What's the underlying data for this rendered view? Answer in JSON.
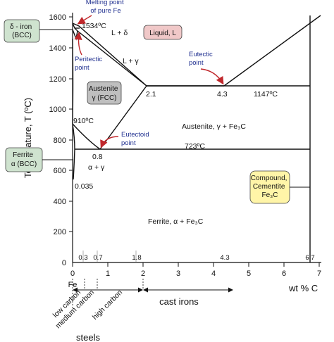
{
  "y_axis": {
    "title": "Temperature, T (ºC)",
    "ticks": [
      "1600",
      "1400",
      "1200",
      "1000",
      "800",
      "600",
      "400",
      "200",
      "0"
    ]
  },
  "x_axis": {
    "title": "wt % C",
    "ticks": [
      "0",
      "1",
      "2",
      "3",
      "4",
      "5",
      "6",
      "7"
    ],
    "fe_label": "Fe",
    "top_values": [
      "0.3",
      "0.7",
      "1.8",
      "4.3",
      "6.7"
    ]
  },
  "phases": {
    "delta_iron": "δ - iron\n(BCC)",
    "liquid": "Liquid, L",
    "austenite": "Austenite\nγ (FCC)",
    "ferrite": "Ferrite\nα (BCC)",
    "compound": "Compound,\nCementite\nFe₃C"
  },
  "labels": {
    "melting_point": "Melting point\nof pure Fe",
    "t1534": "1534ºC",
    "l_plus_delta": "L + δ",
    "l_plus_gamma": "L + γ",
    "peritectic": "Peritectic\npoint",
    "eutectic": "Eutectic\npoint",
    "eutectoid": "Eutectoid\npoint",
    "c_2_1": "2.1",
    "c_4_3": "4.3",
    "t1147": "1147ºC",
    "t910": "910ºC",
    "c_0_8": "0.8",
    "alpha_gamma": "α + γ",
    "t723": "723ºC",
    "c_0_035": "0.035",
    "austenite_fe3c": "Austenite, γ + Fe₃C",
    "ferrite_fe3c": "Ferrite, α + Fe₃C"
  },
  "bottom": {
    "low_carbon": "low carbon",
    "medium_carbon": "medium carbon",
    "high_carbon": "high carbon",
    "steels": "steels",
    "cast_irons": "cast irons"
  },
  "colors": {
    "note_blue": "#1f2f8f",
    "arrow_red": "#c0282c",
    "delta_box": "#cfe3cf",
    "liquid_box": "#f0c8c8",
    "austenite_box": "#bfbfbf",
    "ferrite_box": "#cfe3cf",
    "compound_box": "#fff5a8"
  }
}
